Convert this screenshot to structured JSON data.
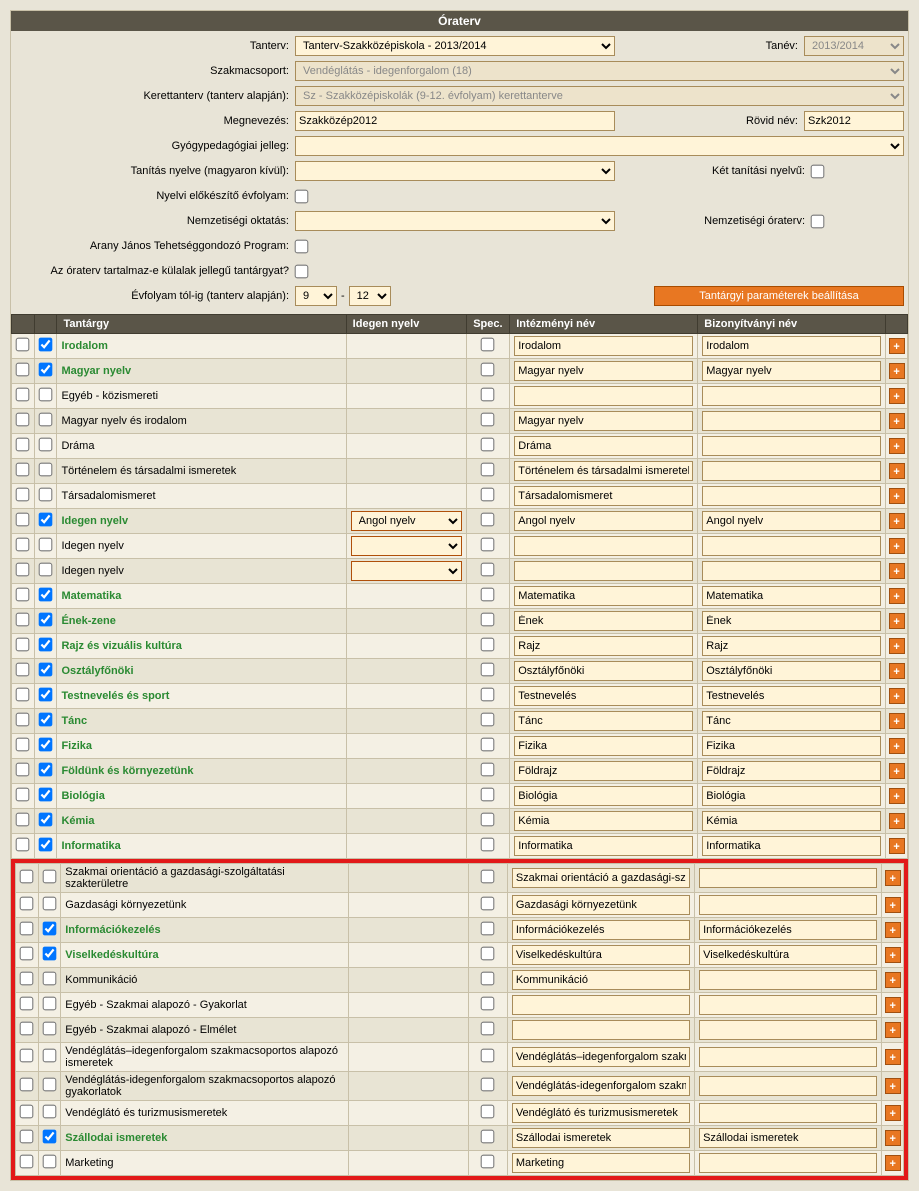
{
  "title": "Óraterv",
  "form": {
    "tanterv": {
      "label": "Tanterv:",
      "value": "Tanterv-Szakközépiskola - 2013/2014"
    },
    "tanev": {
      "label": "Tanév:",
      "value": "2013/2014"
    },
    "szakmacsoport": {
      "label": "Szakmacsoport:",
      "value": "Vendéglátás - idegenforgalom (18)"
    },
    "kerettanterv": {
      "label": "Kerettanterv (tanterv alapján):",
      "value": "Sz - Szakközépiskolák (9-12. évfolyam) kerettanterve"
    },
    "megnevezes": {
      "label": "Megnevezés:",
      "value": "Szakközép2012"
    },
    "rovidnev": {
      "label": "Rövid név:",
      "value": "Szk2012"
    },
    "gyogyped": {
      "label": "Gyógypedagógiai jelleg:",
      "value": ""
    },
    "tanitasnyelve": {
      "label": "Tanítás nyelve (magyaron kívül):",
      "value": ""
    },
    "kettannyelvu": {
      "label": "Két tanítási nyelvű:"
    },
    "nyelveloelo": {
      "label": "Nyelvi előkészítő évfolyam:"
    },
    "nemzetoktatas": {
      "label": "Nemzetiségi oktatás:",
      "value": ""
    },
    "nemzoraterv": {
      "label": "Nemzetiségi óraterv:"
    },
    "aranyjanos": {
      "label": "Arany János Tehetséggondozó Program:"
    },
    "kulalak": {
      "label": "Az óraterv tartalmaz-e külalak jellegű tantárgyat?"
    },
    "evfolyam": {
      "label": "Évfolyam tól-ig (tanterv alapján):",
      "from": "9",
      "to": "12"
    },
    "btnParams": "Tantárgyi paraméterek beállítása"
  },
  "columns": {
    "tantargy": "Tantárgy",
    "idegen": "Idegen nyelv",
    "spec": "Spec.",
    "intezmeny": "Intézményi név",
    "bizonyitvany": "Bizonyítványi név"
  },
  "rows": [
    {
      "sel": true,
      "name": "Irodalom",
      "inst": "Irodalom",
      "cert": "Irodalom"
    },
    {
      "sel": true,
      "name": "Magyar nyelv",
      "inst": "Magyar nyelv",
      "cert": "Magyar nyelv"
    },
    {
      "sel": false,
      "name": "Egyéb - közismereti",
      "plain": true,
      "inst": "",
      "cert": ""
    },
    {
      "sel": false,
      "name": "Magyar nyelv és irodalom",
      "plain": true,
      "inst": "Magyar nyelv",
      "cert": ""
    },
    {
      "sel": false,
      "name": "Dráma",
      "plain": true,
      "inst": "Dráma",
      "cert": ""
    },
    {
      "sel": false,
      "name": "Történelem és társadalmi ismeretek",
      "plain": true,
      "inst": "Történelem és társadalmi ismeretek",
      "cert": ""
    },
    {
      "sel": false,
      "name": "Társadalomismeret",
      "plain": true,
      "inst": "Társadalomismeret",
      "cert": ""
    },
    {
      "sel": true,
      "name": "Idegen nyelv",
      "lang": "Angol nyelv",
      "inst": "Angol nyelv",
      "cert": "Angol nyelv"
    },
    {
      "sel": false,
      "name": "Idegen nyelv",
      "lang": "",
      "plain": true,
      "langSel": true,
      "inst": "",
      "cert": ""
    },
    {
      "sel": false,
      "name": "Idegen nyelv",
      "lang": "",
      "plain": true,
      "langSel": true,
      "inst": "",
      "cert": ""
    },
    {
      "sel": true,
      "name": "Matematika",
      "inst": "Matematika",
      "cert": "Matematika"
    },
    {
      "sel": true,
      "name": "Ének-zene",
      "inst": "Ének",
      "cert": "Ének"
    },
    {
      "sel": true,
      "name": "Rajz és vizuális kultúra",
      "inst": "Rajz",
      "cert": "Rajz"
    },
    {
      "sel": true,
      "name": "Osztályfőnöki",
      "inst": "Osztályfőnöki",
      "cert": "Osztályfőnöki"
    },
    {
      "sel": true,
      "name": "Testnevelés és sport",
      "inst": "Testnevelés",
      "cert": "Testnevelés"
    },
    {
      "sel": true,
      "name": "Tánc",
      "inst": "Tánc",
      "cert": "Tánc"
    },
    {
      "sel": true,
      "name": "Fizika",
      "inst": "Fizika",
      "cert": "Fizika"
    },
    {
      "sel": true,
      "name": "Földünk és környezetünk",
      "inst": "Földrajz",
      "cert": "Földrajz"
    },
    {
      "sel": true,
      "name": "Biológia",
      "inst": "Biológia",
      "cert": "Biológia"
    },
    {
      "sel": true,
      "name": "Kémia",
      "inst": "Kémia",
      "cert": "Kémia"
    },
    {
      "sel": true,
      "name": "Informatika",
      "inst": "Informatika",
      "cert": "Informatika"
    }
  ],
  "hrows": [
    {
      "sel": false,
      "name": "Szakmai orientáció a gazdasági-szolgáltatási szakterületre",
      "plain": true,
      "inst": "Szakmai orientáció a gazdasági-szolgá",
      "cert": ""
    },
    {
      "sel": false,
      "name": "Gazdasági környezetünk",
      "plain": true,
      "inst": "Gazdasági környezetünk",
      "cert": ""
    },
    {
      "sel": true,
      "name": "Információkezelés",
      "inst": "Információkezelés",
      "cert": "Információkezelés"
    },
    {
      "sel": true,
      "name": "Viselkedéskultúra",
      "inst": "Viselkedéskultúra",
      "cert": "Viselkedéskultúra"
    },
    {
      "sel": false,
      "name": "Kommunikáció",
      "plain": true,
      "inst": "Kommunikáció",
      "cert": ""
    },
    {
      "sel": false,
      "name": "Egyéb - Szakmai alapozó - Gyakorlat",
      "plain": true,
      "inst": "",
      "cert": ""
    },
    {
      "sel": false,
      "name": "Egyéb - Szakmai alapozó - Elmélet",
      "plain": true,
      "inst": "",
      "cert": ""
    },
    {
      "sel": false,
      "name": "Vendéglátás–idegenforgalom szakmacsoportos alapozó ismeretek",
      "plain": true,
      "inst": "Vendéglátás–idegenforgalom szakmac",
      "cert": ""
    },
    {
      "sel": false,
      "name": "Vendéglátás-idegenforgalom szakmacsoportos alapozó gyakorlatok",
      "plain": true,
      "inst": "Vendéglátás-idegenforgalom szakmac",
      "cert": ""
    },
    {
      "sel": false,
      "name": "Vendéglátó és turizmusismeretek",
      "plain": true,
      "inst": "Vendéglátó és turizmusismeretek",
      "cert": ""
    },
    {
      "sel": true,
      "name": "Szállodai ismeretek",
      "inst": "Szállodai ismeretek",
      "cert": "Szállodai ismeretek"
    },
    {
      "sel": false,
      "name": "Marketing",
      "plain": true,
      "inst": "Marketing",
      "cert": ""
    }
  ]
}
